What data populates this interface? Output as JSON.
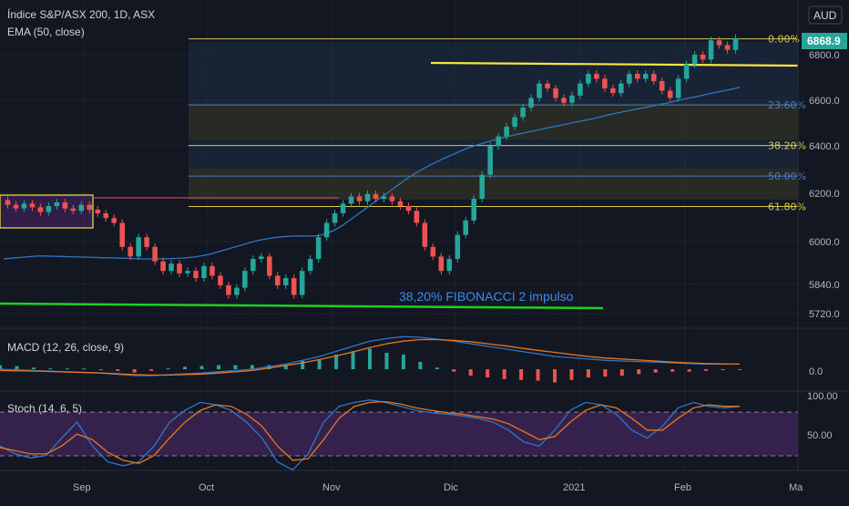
{
  "header": {
    "symbol": "Índice S&P/ASX 200, 1D, ASX",
    "ema": "EMA (50, close)",
    "currency": "AUD",
    "last_price": "6868.9"
  },
  "macd_label": "MACD (12, 26, close, 9)",
  "stoch_label": "Stoch (14, 6, 5)",
  "annotation": "38,20% FIBONACCI 2 impulso",
  "fib_levels": [
    {
      "label": "0.00%",
      "price": 6866,
      "color": "#d8c949"
    },
    {
      "label": "23.60%",
      "price": 6591,
      "color": "#4a7dbf"
    },
    {
      "label": "38.20%",
      "price": 6422,
      "color": "#d8c949"
    },
    {
      "label": "50.00%",
      "price": 6295,
      "color": "#4a7dbf"
    },
    {
      "label": "61.80%",
      "price": 6168,
      "color": "#d8c949"
    }
  ],
  "colors": {
    "up": "#26a69a",
    "down": "#ef5350",
    "ema": "#2f76c4",
    "macd_line": "#2f76c4",
    "signal_line": "#e8761e",
    "stoch_k": "#2f76c4",
    "stoch_d": "#e8761e",
    "resistance": "#f5e642",
    "support": "#1fd11f"
  },
  "chart_data": [
    {
      "type": "candlestick",
      "title": "Índice S&P/ASX 200, 1D, ASX",
      "y_ticks": [
        "6800.0",
        "6600.0",
        "6400.0",
        "6200.0",
        "6000.0",
        "5840.0",
        "5720.0"
      ],
      "x_ticks": [
        "Sep",
        "Oct",
        "Nov",
        "Dic",
        "2021",
        "Feb",
        "Ma"
      ],
      "ylim": [
        5680,
        6930
      ],
      "series": [
        {
          "name": "EMA (50, close)",
          "values": [
            5950,
            5953,
            5956,
            5959,
            5962,
            5962,
            5961,
            5960,
            5959,
            5958,
            5957,
            5956,
            5955,
            5954,
            5953,
            5952,
            5951,
            5950,
            5950,
            5950,
            5951,
            5952,
            5954,
            5958,
            5963,
            5970,
            5980,
            5990,
            6000,
            6010,
            6020,
            6029,
            6035,
            6040,
            6043,
            6045,
            6045,
            6045,
            6046,
            6055,
            6070,
            6090,
            6115,
            6140,
            6165,
            6190,
            6215,
            6240,
            6265,
            6290,
            6310,
            6330,
            6348,
            6365,
            6380,
            6395,
            6410,
            6422,
            6432,
            6442,
            6452,
            6460,
            6468,
            6475,
            6482,
            6490,
            6497,
            6504,
            6511,
            6518,
            6525,
            6532,
            6540,
            6548,
            6556,
            6563,
            6570,
            6577,
            6583,
            6590,
            6597,
            6605,
            6613,
            6620,
            6627,
            6635,
            6642,
            6649,
            6656,
            6664
          ]
        }
      ],
      "candles": [
        [
          6195,
          6175
        ],
        [
          6175,
          6160
        ],
        [
          6160,
          6180
        ],
        [
          6180,
          6165
        ],
        [
          6165,
          6145
        ],
        [
          6145,
          6170
        ],
        [
          6170,
          6185
        ],
        [
          6185,
          6160
        ],
        [
          6160,
          6150
        ],
        [
          6150,
          6175
        ],
        [
          6175,
          6155
        ],
        [
          6155,
          6140
        ],
        [
          6140,
          6120
        ],
        [
          6120,
          6100
        ],
        [
          6100,
          6000
        ],
        [
          6000,
          5960
        ],
        [
          5960,
          6040
        ],
        [
          6040,
          6000
        ],
        [
          6000,
          5940
        ],
        [
          5940,
          5900
        ],
        [
          5900,
          5930
        ],
        [
          5930,
          5890
        ],
        [
          5890,
          5900
        ],
        [
          5900,
          5870
        ],
        [
          5870,
          5920
        ],
        [
          5920,
          5880
        ],
        [
          5880,
          5840
        ],
        [
          5840,
          5800
        ],
        [
          5800,
          5830
        ],
        [
          5830,
          5900
        ],
        [
          5900,
          5950
        ],
        [
          5950,
          5960
        ],
        [
          5960,
          5880
        ],
        [
          5880,
          5840
        ],
        [
          5840,
          5870
        ],
        [
          5870,
          5800
        ],
        [
          5800,
          5900
        ],
        [
          5900,
          5950
        ],
        [
          5950,
          6040
        ],
        [
          6040,
          6100
        ],
        [
          6100,
          6140
        ],
        [
          6140,
          6180
        ],
        [
          6180,
          6210
        ],
        [
          6210,
          6190
        ],
        [
          6190,
          6220
        ],
        [
          6220,
          6200
        ],
        [
          6200,
          6210
        ],
        [
          6210,
          6190
        ],
        [
          6190,
          6170
        ],
        [
          6170,
          6150
        ],
        [
          6150,
          6100
        ],
        [
          6100,
          6000
        ],
        [
          6000,
          5960
        ],
        [
          5960,
          5900
        ],
        [
          5900,
          5950
        ],
        [
          5950,
          6050
        ],
        [
          6050,
          6110
        ],
        [
          6110,
          6200
        ],
        [
          6200,
          6300
        ],
        [
          6300,
          6420
        ],
        [
          6420,
          6460
        ],
        [
          6460,
          6500
        ],
        [
          6500,
          6540
        ],
        [
          6540,
          6580
        ],
        [
          6580,
          6620
        ],
        [
          6620,
          6680
        ],
        [
          6680,
          6660
        ],
        [
          6660,
          6620
        ],
        [
          6620,
          6600
        ],
        [
          6600,
          6630
        ],
        [
          6630,
          6680
        ],
        [
          6680,
          6720
        ],
        [
          6720,
          6700
        ],
        [
          6700,
          6660
        ],
        [
          6660,
          6640
        ],
        [
          6640,
          6680
        ],
        [
          6680,
          6720
        ],
        [
          6720,
          6700
        ],
        [
          6700,
          6720
        ],
        [
          6720,
          6690
        ],
        [
          6690,
          6650
        ],
        [
          6650,
          6620
        ],
        [
          6620,
          6700
        ],
        [
          6700,
          6760
        ],
        [
          6760,
          6800
        ],
        [
          6800,
          6780
        ],
        [
          6780,
          6860
        ],
        [
          6860,
          6840
        ],
        [
          6840,
          6820
        ],
        [
          6820,
          6869
        ]
      ]
    },
    {
      "type": "line",
      "title": "MACD (12, 26, close, 9)",
      "y_ticks": [
        "0.0"
      ],
      "series": [
        {
          "name": "MACD",
          "values": [
            0,
            -2,
            -5,
            -8,
            -10,
            -12,
            -15,
            -20,
            -25,
            -25,
            -22,
            -18,
            -15,
            -10,
            -5,
            0,
            10,
            20,
            35,
            50,
            70,
            90,
            110,
            120,
            128,
            125,
            118,
            110,
            100,
            90,
            80,
            70,
            60,
            50,
            45,
            40,
            35,
            32,
            30,
            28,
            25,
            22,
            20,
            20,
            20
          ]
        },
        {
          "name": "Signal",
          "values": [
            -5,
            -6,
            -7,
            -9,
            -11,
            -13,
            -15,
            -18,
            -21,
            -23,
            -23,
            -21,
            -19,
            -15,
            -10,
            -5,
            5,
            15,
            25,
            38,
            52,
            68,
            85,
            100,
            110,
            116,
            116,
            113,
            108,
            100,
            92,
            83,
            74,
            66,
            58,
            50,
            44,
            40,
            36,
            32,
            28,
            25,
            22,
            21,
            20
          ]
        }
      ]
    },
    {
      "type": "line",
      "title": "Stoch (14, 6, 5)",
      "y_ticks": [
        "100.00",
        "50.00"
      ],
      "series": [
        {
          "name": "%K",
          "values": [
            40,
            30,
            25,
            28,
            50,
            70,
            40,
            20,
            15,
            20,
            40,
            70,
            85,
            95,
            92,
            85,
            70,
            50,
            20,
            10,
            30,
            70,
            90,
            95,
            98,
            95,
            90,
            85,
            82,
            80,
            78,
            75,
            70,
            60,
            45,
            40,
            60,
            85,
            95,
            92,
            80,
            60,
            50,
            65,
            88,
            95,
            90,
            88,
            90
          ]
        },
        {
          "name": "%D",
          "values": [
            38,
            34,
            30,
            30,
            40,
            55,
            48,
            32,
            22,
            18,
            28,
            50,
            70,
            85,
            92,
            90,
            80,
            65,
            40,
            22,
            24,
            48,
            75,
            90,
            95,
            96,
            93,
            88,
            85,
            82,
            80,
            77,
            74,
            68,
            58,
            48,
            52,
            70,
            85,
            92,
            88,
            75,
            60,
            60,
            75,
            88,
            92,
            90,
            90
          ]
        }
      ]
    }
  ]
}
